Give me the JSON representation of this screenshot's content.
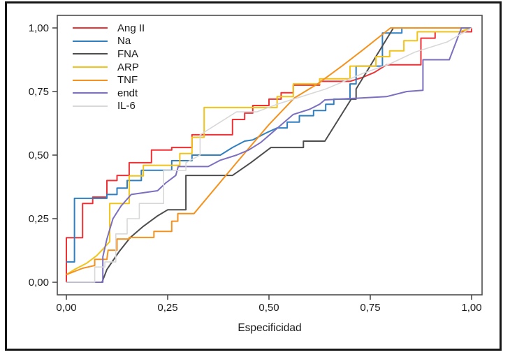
{
  "figure": {
    "background": "#ffffff",
    "outer_border_color": "#161616",
    "plot_border_color": "#4c4c4c",
    "tick_color": "#4c4c4c",
    "label_color": "#1a1a1a"
  },
  "axes": {
    "x_label": "Especificidad",
    "x_tick_labels": [
      "0,00",
      "0,25",
      "0,50",
      "0,75",
      "1,00"
    ],
    "x_tick_values": [
      0,
      0.25,
      0.5,
      0.75,
      1
    ],
    "y_tick_labels": [
      "0,00",
      "0,25",
      "0,50",
      "0,75",
      "1,00"
    ],
    "y_tick_values": [
      0,
      0.25,
      0.5,
      0.75,
      1
    ],
    "xlim": [
      0,
      1
    ],
    "ylim": [
      0,
      1
    ],
    "grid": "off"
  },
  "chart_data": {
    "type": "line",
    "subtype": "roc-step-curves",
    "title": "",
    "xlabel": "Especificidad",
    "ylabel": "",
    "xlim": [
      0,
      1
    ],
    "ylim": [
      0,
      1
    ],
    "legend_position": "top-left-inside",
    "series": [
      {
        "name": "Ang II",
        "color": "#ee3135",
        "width": 2,
        "points": [
          [
            0,
            0
          ],
          [
            0,
            0.175
          ],
          [
            0.04,
            0.175
          ],
          [
            0.04,
            0.31
          ],
          [
            0.065,
            0.31
          ],
          [
            0.065,
            0.335
          ],
          [
            0.1,
            0.335
          ],
          [
            0.1,
            0.4
          ],
          [
            0.125,
            0.4
          ],
          [
            0.125,
            0.42
          ],
          [
            0.155,
            0.42
          ],
          [
            0.155,
            0.47
          ],
          [
            0.21,
            0.47
          ],
          [
            0.21,
            0.52
          ],
          [
            0.26,
            0.52
          ],
          [
            0.26,
            0.53
          ],
          [
            0.31,
            0.53
          ],
          [
            0.31,
            0.58
          ],
          [
            0.41,
            0.58
          ],
          [
            0.41,
            0.64
          ],
          [
            0.44,
            0.64
          ],
          [
            0.44,
            0.665
          ],
          [
            0.46,
            0.665
          ],
          [
            0.46,
            0.695
          ],
          [
            0.5,
            0.695
          ],
          [
            0.5,
            0.72
          ],
          [
            0.53,
            0.72
          ],
          [
            0.53,
            0.745
          ],
          [
            0.56,
            0.745
          ],
          [
            0.56,
            0.775
          ],
          [
            0.625,
            0.775
          ],
          [
            0.625,
            0.79
          ],
          [
            0.7,
            0.79
          ],
          [
            0.73,
            0.805
          ],
          [
            0.76,
            0.825
          ],
          [
            0.79,
            0.855
          ],
          [
            0.875,
            0.855
          ],
          [
            0.875,
            0.96
          ],
          [
            0.91,
            0.96
          ],
          [
            0.91,
            0.985
          ],
          [
            1,
            0.985
          ],
          [
            1,
            1
          ]
        ]
      },
      {
        "name": "Na",
        "color": "#2f7fc1",
        "width": 2,
        "points": [
          [
            0,
            0.08
          ],
          [
            0.02,
            0.08
          ],
          [
            0.02,
            0.33
          ],
          [
            0.1,
            0.33
          ],
          [
            0.1,
            0.345
          ],
          [
            0.125,
            0.345
          ],
          [
            0.125,
            0.37
          ],
          [
            0.15,
            0.37
          ],
          [
            0.15,
            0.4
          ],
          [
            0.185,
            0.4
          ],
          [
            0.185,
            0.44
          ],
          [
            0.26,
            0.44
          ],
          [
            0.26,
            0.478
          ],
          [
            0.31,
            0.478
          ],
          [
            0.31,
            0.5
          ],
          [
            0.38,
            0.5
          ],
          [
            0.41,
            0.53
          ],
          [
            0.44,
            0.555
          ],
          [
            0.46,
            0.56
          ],
          [
            0.49,
            0.585
          ],
          [
            0.52,
            0.607
          ],
          [
            0.545,
            0.607
          ],
          [
            0.545,
            0.63
          ],
          [
            0.575,
            0.63
          ],
          [
            0.575,
            0.655
          ],
          [
            0.61,
            0.655
          ],
          [
            0.61,
            0.675
          ],
          [
            0.64,
            0.675
          ],
          [
            0.64,
            0.7
          ],
          [
            0.66,
            0.7
          ],
          [
            0.66,
            0.72
          ],
          [
            0.7,
            0.72
          ],
          [
            0.7,
            0.78
          ],
          [
            0.715,
            0.78
          ],
          [
            0.715,
            0.85
          ],
          [
            0.78,
            0.85
          ],
          [
            0.78,
            0.98
          ],
          [
            0.828,
            0.98
          ],
          [
            0.828,
            1
          ],
          [
            1,
            1
          ]
        ]
      },
      {
        "name": "FNA",
        "color": "#4d4d4d",
        "width": 2,
        "points": [
          [
            0,
            0
          ],
          [
            0.088,
            0
          ],
          [
            0.1,
            0.05
          ],
          [
            0.13,
            0.12
          ],
          [
            0.158,
            0.176
          ],
          [
            0.19,
            0.22
          ],
          [
            0.224,
            0.26
          ],
          [
            0.25,
            0.285
          ],
          [
            0.295,
            0.285
          ],
          [
            0.295,
            0.42
          ],
          [
            0.41,
            0.42
          ],
          [
            0.455,
            0.47
          ],
          [
            0.505,
            0.53
          ],
          [
            0.585,
            0.53
          ],
          [
            0.585,
            0.555
          ],
          [
            0.638,
            0.555
          ],
          [
            0.703,
            0.72
          ],
          [
            0.715,
            0.72
          ],
          [
            0.715,
            0.76
          ],
          [
            0.807,
            1
          ],
          [
            1,
            1
          ]
        ]
      },
      {
        "name": "ARP",
        "color": "#f2c318",
        "width": 2,
        "points": [
          [
            0,
            0.03
          ],
          [
            0.02,
            0.05
          ],
          [
            0.05,
            0.075
          ],
          [
            0.075,
            0.105
          ],
          [
            0.09,
            0.13
          ],
          [
            0.107,
            0.16
          ],
          [
            0.107,
            0.31
          ],
          [
            0.155,
            0.31
          ],
          [
            0.155,
            0.418
          ],
          [
            0.19,
            0.418
          ],
          [
            0.19,
            0.46
          ],
          [
            0.28,
            0.46
          ],
          [
            0.28,
            0.506
          ],
          [
            0.31,
            0.506
          ],
          [
            0.31,
            0.57
          ],
          [
            0.34,
            0.57
          ],
          [
            0.34,
            0.687
          ],
          [
            0.52,
            0.687
          ],
          [
            0.52,
            0.73
          ],
          [
            0.56,
            0.73
          ],
          [
            0.56,
            0.78
          ],
          [
            0.625,
            0.78
          ],
          [
            0.625,
            0.8
          ],
          [
            0.7,
            0.8
          ],
          [
            0.7,
            0.85
          ],
          [
            0.764,
            0.85
          ],
          [
            0.764,
            0.887
          ],
          [
            0.798,
            0.887
          ],
          [
            0.798,
            0.91
          ],
          [
            0.833,
            0.91
          ],
          [
            0.833,
            0.95
          ],
          [
            0.866,
            0.95
          ],
          [
            0.866,
            0.985
          ],
          [
            0.97,
            0.985
          ],
          [
            1,
            1
          ]
        ]
      },
      {
        "name": "TNF",
        "color": "#f5921e",
        "width": 2,
        "points": [
          [
            0,
            0.03
          ],
          [
            0.04,
            0.055
          ],
          [
            0.07,
            0.066
          ],
          [
            0.07,
            0.09
          ],
          [
            0.1,
            0.09
          ],
          [
            0.103,
            0.126
          ],
          [
            0.125,
            0.126
          ],
          [
            0.125,
            0.17
          ],
          [
            0.155,
            0.17
          ],
          [
            0.155,
            0.176
          ],
          [
            0.216,
            0.176
          ],
          [
            0.216,
            0.2
          ],
          [
            0.26,
            0.2
          ],
          [
            0.26,
            0.24
          ],
          [
            0.275,
            0.24
          ],
          [
            0.275,
            0.27
          ],
          [
            0.315,
            0.27
          ],
          [
            0.42,
            0.47
          ],
          [
            0.5,
            0.62
          ],
          [
            0.563,
            0.725
          ],
          [
            0.62,
            0.78
          ],
          [
            0.68,
            0.85
          ],
          [
            0.733,
            0.915
          ],
          [
            0.8,
            1
          ],
          [
            1,
            1
          ]
        ]
      },
      {
        "name": "endt",
        "color": "#7b6fc0",
        "width": 2,
        "points": [
          [
            0,
            0
          ],
          [
            0.09,
            0
          ],
          [
            0.09,
            0.1
          ],
          [
            0.1,
            0.17
          ],
          [
            0.115,
            0.25
          ],
          [
            0.135,
            0.3
          ],
          [
            0.16,
            0.345
          ],
          [
            0.225,
            0.36
          ],
          [
            0.245,
            0.39
          ],
          [
            0.27,
            0.42
          ],
          [
            0.276,
            0.455
          ],
          [
            0.35,
            0.455
          ],
          [
            0.38,
            0.48
          ],
          [
            0.42,
            0.5
          ],
          [
            0.45,
            0.52
          ],
          [
            0.48,
            0.55
          ],
          [
            0.52,
            0.605
          ],
          [
            0.56,
            0.66
          ],
          [
            0.6,
            0.68
          ],
          [
            0.625,
            0.7
          ],
          [
            0.638,
            0.717
          ],
          [
            0.79,
            0.73
          ],
          [
            0.84,
            0.75
          ],
          [
            0.88,
            0.755
          ],
          [
            0.88,
            0.875
          ],
          [
            0.945,
            0.875
          ],
          [
            0.975,
            1
          ],
          [
            1,
            1
          ]
        ]
      },
      {
        "name": "IL-6",
        "color": "#d8d8d8",
        "width": 1.6,
        "points": [
          [
            0,
            0
          ],
          [
            0.07,
            0
          ],
          [
            0.07,
            0.06
          ],
          [
            0.095,
            0.06
          ],
          [
            0.095,
            0.08
          ],
          [
            0.122,
            0.08
          ],
          [
            0.122,
            0.19
          ],
          [
            0.15,
            0.19
          ],
          [
            0.15,
            0.25
          ],
          [
            0.18,
            0.25
          ],
          [
            0.18,
            0.31
          ],
          [
            0.24,
            0.31
          ],
          [
            0.24,
            0.44
          ],
          [
            0.295,
            0.44
          ],
          [
            0.295,
            0.47
          ],
          [
            0.33,
            0.5
          ],
          [
            0.33,
            0.58
          ],
          [
            0.42,
            0.67
          ],
          [
            0.47,
            0.67
          ],
          [
            0.52,
            0.7
          ],
          [
            0.58,
            0.73
          ],
          [
            0.64,
            0.76
          ],
          [
            0.733,
            0.822
          ],
          [
            0.8,
            0.86
          ],
          [
            0.86,
            0.905
          ],
          [
            0.94,
            0.945
          ],
          [
            1,
            1
          ]
        ]
      }
    ]
  }
}
